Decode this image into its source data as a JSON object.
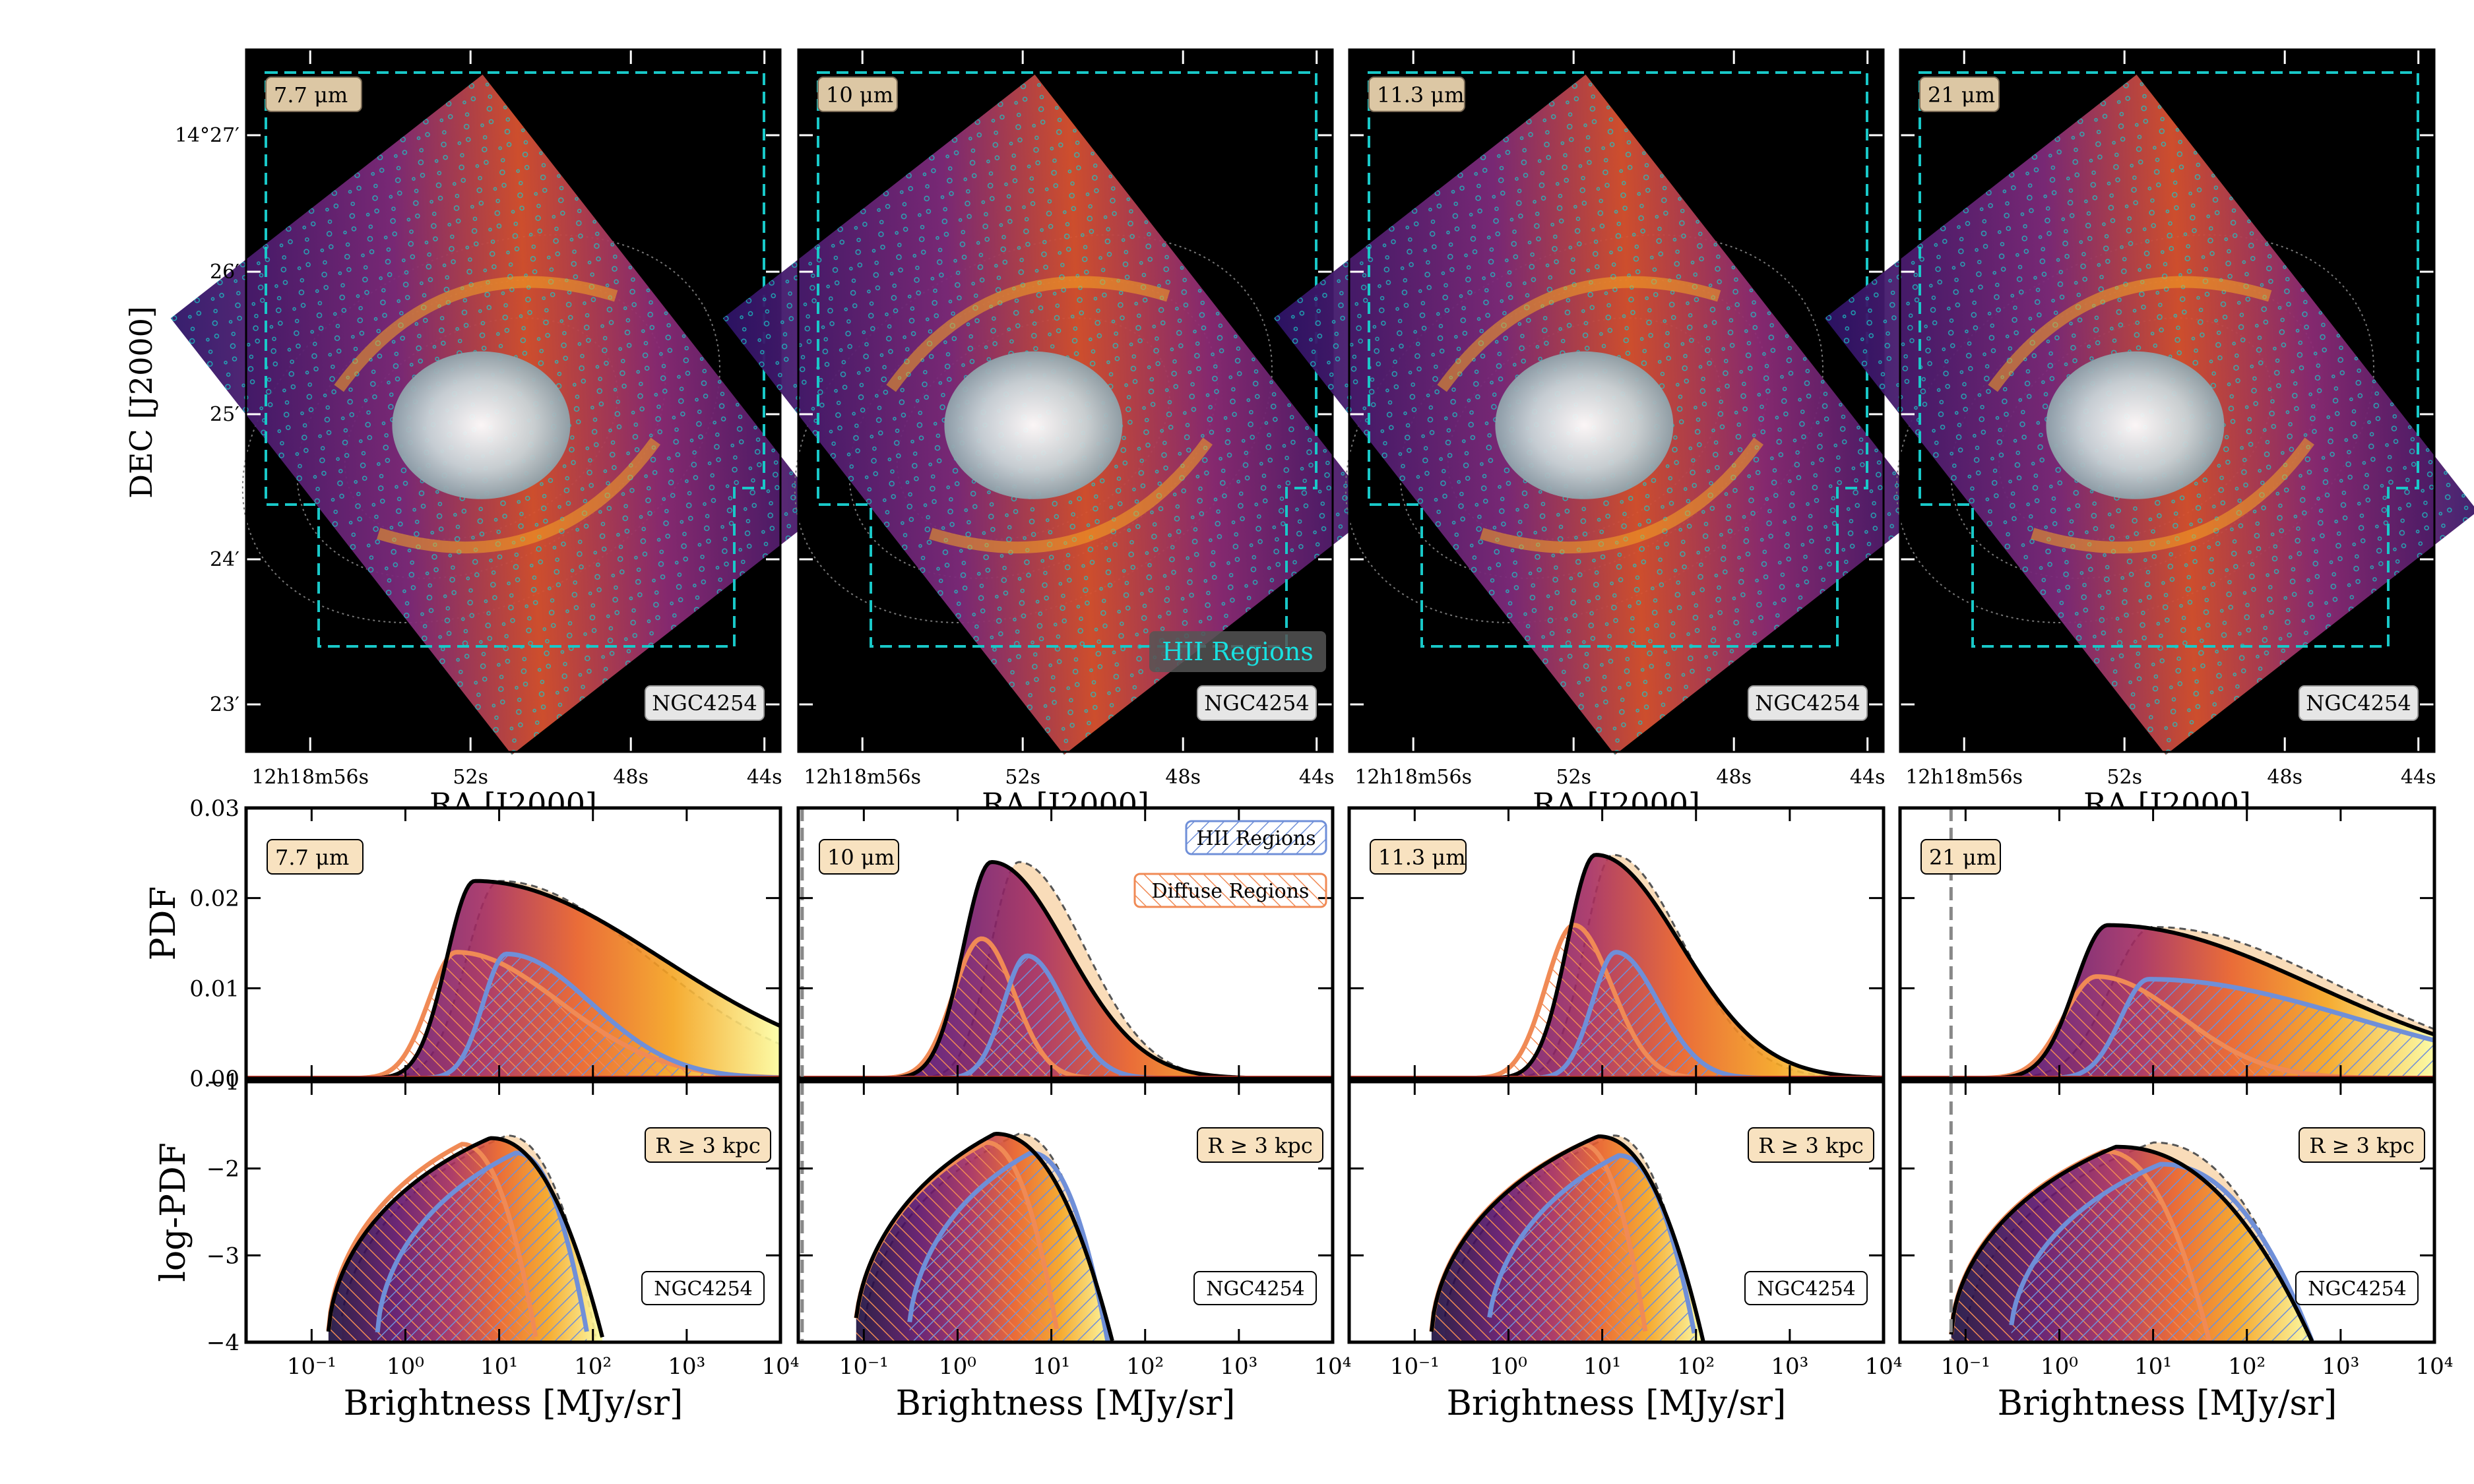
{
  "chart_data": {
    "type": "multi-panel figure (images + area plots)",
    "image_panels": [
      {
        "band": "7.7 μm",
        "galaxy": "NGC4254"
      },
      {
        "band": "10 μm",
        "galaxy": "NGC4254",
        "legend": "HII Regions"
      },
      {
        "band": "11.3 μm",
        "galaxy": "NGC4254"
      },
      {
        "band": "21 μm",
        "galaxy": "NGC4254"
      }
    ],
    "image_axes": {
      "ylabel": "DEC [J2000]",
      "xlabel": "RA [J2000]",
      "dec_ticks": [
        "14°27′",
        "26′",
        "25′",
        "24′",
        "23′"
      ],
      "ra_ticks": [
        "12h18m56s",
        "52s",
        "48s",
        "44s"
      ]
    },
    "pdf_axes": {
      "ylabel": "PDF",
      "ylim": [
        0.0,
        0.03
      ],
      "yticks": [
        "0.00",
        "0.01",
        "0.02",
        "0.03"
      ]
    },
    "logpdf_axes": {
      "ylabel": "log-PDF",
      "ylim": [
        -4,
        -1
      ],
      "yticks": [
        "−1",
        "−2",
        "−3",
        "−4"
      ]
    },
    "x_axis": {
      "label": "Brightness [MJy/sr]",
      "scale": "log",
      "xlim": [
        0.02,
        10000
      ],
      "ticks": [
        "10⁻¹",
        "10⁰",
        "10¹",
        "10²",
        "10³",
        "10⁴"
      ]
    },
    "legend": {
      "hii": "HII Regions",
      "diffuse": "Diffuse Regions"
    },
    "radius_label": "R ≥ 3 kpc",
    "galaxy": "NGC4254",
    "colors": {
      "hii": "#6f8fd8",
      "diffuse": "#f08a55",
      "total": "#000000",
      "cyan": "#19c8c8"
    },
    "series": [
      {
        "band": "7.7 μm",
        "threshold": null,
        "pdf_total": {
          "peak_x": 5.5,
          "peak_y": 0.0219,
          "lo": 0.3,
          "hi": 2.0
        },
        "pdf_all": {
          "peak_x": 10,
          "peak_y": 0.0219,
          "lo": 0.35,
          "hi": 1.6
        },
        "pdf_diffuse": {
          "peak_x": 3.5,
          "peak_y": 0.014,
          "lo": 0.3,
          "hi": 1.1
        },
        "pdf_hii": {
          "peak_x": 12,
          "peak_y": 0.0138,
          "lo": 0.25,
          "hi": 0.9
        },
        "logpdf_total": {
          "peak_x": 8,
          "peak_y": -1.65,
          "xmin": 0.15,
          "xmax": 130
        },
        "logpdf_all": {
          "peak_x": 12,
          "peak_y": -1.62,
          "xmin": 0.2,
          "xmax": 110
        },
        "logpdf_diffuse": {
          "peak_x": 4,
          "peak_y": -1.72,
          "xmin": 0.15,
          "xmax": 25
        },
        "logpdf_hii": {
          "peak_x": 15,
          "peak_y": -1.82,
          "xmin": 0.5,
          "xmax": 90
        }
      },
      {
        "band": "10 μm",
        "threshold": 0.022,
        "pdf_total": {
          "peak_x": 2.3,
          "peak_y": 0.024,
          "lo": 0.3,
          "hi": 0.8
        },
        "pdf_all": {
          "peak_x": 4.5,
          "peak_y": 0.024,
          "lo": 0.3,
          "hi": 0.7
        },
        "pdf_diffuse": {
          "peak_x": 1.8,
          "peak_y": 0.0155,
          "lo": 0.3,
          "hi": 0.35
        },
        "pdf_hii": {
          "peak_x": 5.5,
          "peak_y": 0.0136,
          "lo": 0.25,
          "hi": 0.4
        },
        "logpdf_total": {
          "peak_x": 2.5,
          "peak_y": -1.6,
          "xmin": 0.08,
          "xmax": 45
        },
        "logpdf_all": {
          "peak_x": 4.5,
          "peak_y": -1.6,
          "xmin": 0.1,
          "xmax": 40
        },
        "logpdf_diffuse": {
          "peak_x": 2,
          "peak_y": -1.7,
          "xmin": 0.08,
          "xmax": 12
        },
        "logpdf_hii": {
          "peak_x": 6,
          "peak_y": -1.82,
          "xmin": 0.3,
          "xmax": 40
        }
      },
      {
        "band": "11.3 μm",
        "threshold": 0.02,
        "pdf_total": {
          "peak_x": 8.5,
          "peak_y": 0.0248,
          "lo": 0.3,
          "hi": 0.9
        },
        "pdf_all": {
          "peak_x": 13,
          "peak_y": 0.0248,
          "lo": 0.3,
          "hi": 0.75
        },
        "pdf_diffuse": {
          "peak_x": 5,
          "peak_y": 0.017,
          "lo": 0.3,
          "hi": 0.4
        },
        "pdf_hii": {
          "peak_x": 14,
          "peak_y": 0.014,
          "lo": 0.25,
          "hi": 0.45
        },
        "logpdf_total": {
          "peak_x": 9,
          "peak_y": -1.63,
          "xmin": 0.15,
          "xmax": 120
        },
        "logpdf_all": {
          "peak_x": 13,
          "peak_y": -1.62,
          "xmin": 0.2,
          "xmax": 100
        },
        "logpdf_diffuse": {
          "peak_x": 6,
          "peak_y": -1.72,
          "xmin": 0.15,
          "xmax": 30
        },
        "logpdf_hii": {
          "peak_x": 15,
          "peak_y": -1.85,
          "xmin": 0.6,
          "xmax": 100
        }
      },
      {
        "band": "21 μm",
        "threshold": 0.07,
        "pdf_total": {
          "peak_x": 3.3,
          "peak_y": 0.017,
          "lo": 0.35,
          "hi": 2.2
        },
        "pdf_all": {
          "peak_x": 10,
          "peak_y": 0.0168,
          "lo": 0.45,
          "hi": 2.0
        },
        "pdf_diffuse": {
          "peak_x": 2.5,
          "peak_y": 0.0113,
          "lo": 0.35,
          "hi": 0.9
        },
        "pdf_hii": {
          "peak_x": 9,
          "peak_y": 0.011,
          "lo": 0.3,
          "hi": 2.2
        },
        "logpdf_total": {
          "peak_x": 4,
          "peak_y": -1.75,
          "xmin": 0.07,
          "xmax": 500
        },
        "logpdf_all": {
          "peak_x": 10,
          "peak_y": -1.7,
          "xmin": 0.1,
          "xmax": 450
        },
        "logpdf_diffuse": {
          "peak_x": 3,
          "peak_y": -1.8,
          "xmin": 0.07,
          "xmax": 40
        },
        "logpdf_hii": {
          "peak_x": 12,
          "peak_y": -1.95,
          "xmin": 0.3,
          "xmax": 500
        }
      }
    ]
  }
}
